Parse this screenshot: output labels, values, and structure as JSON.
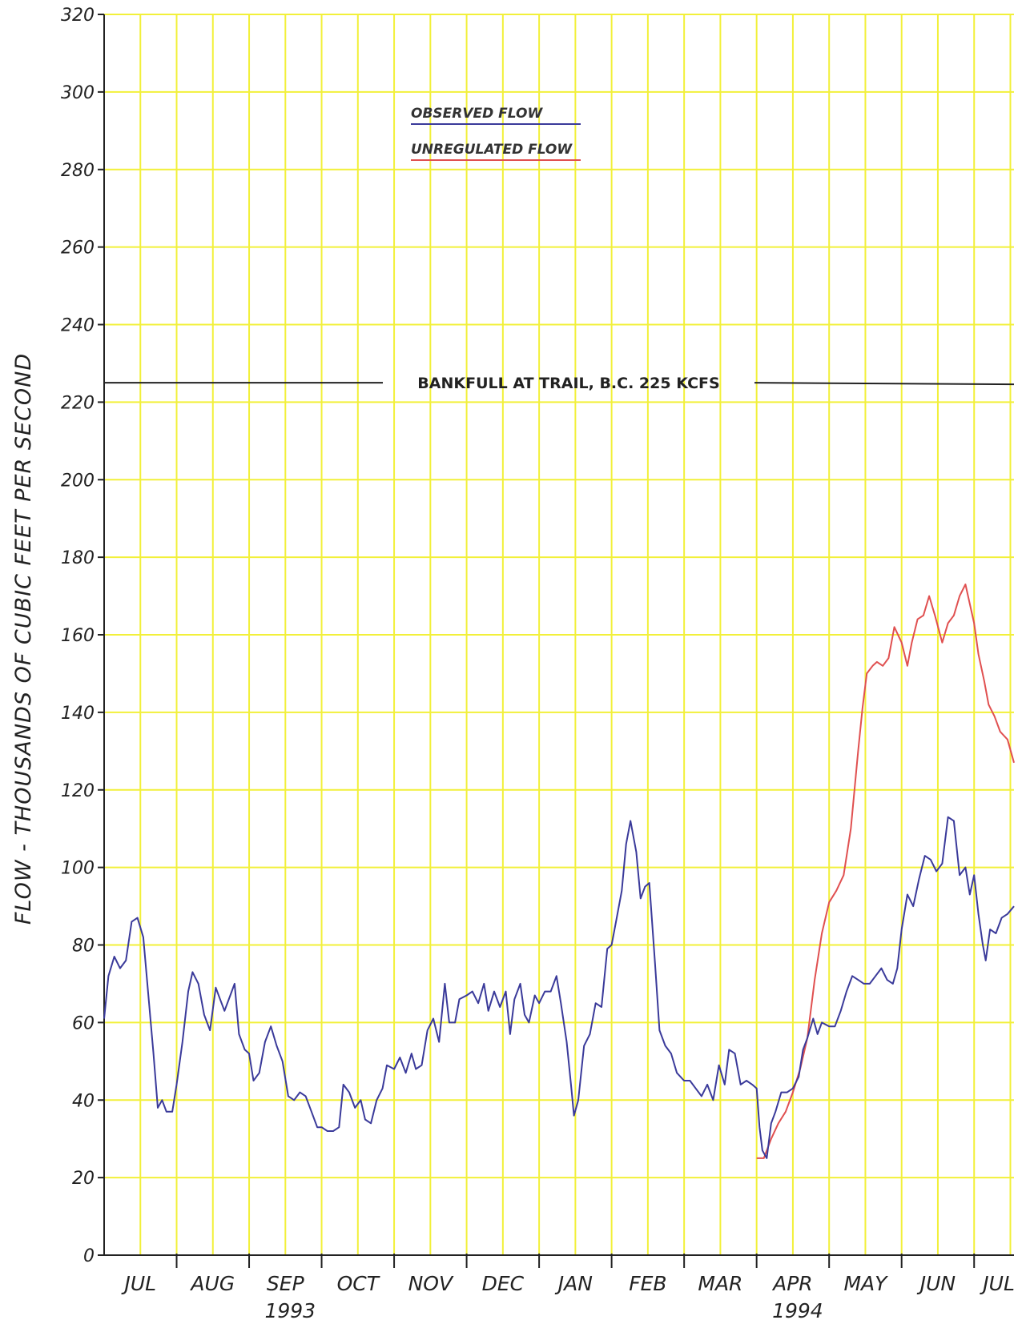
{
  "chart_data": {
    "type": "line",
    "ylabel": "FLOW - THOUSANDS OF CUBIC FEET PER SECOND",
    "ylim": [
      0,
      320
    ],
    "y_ticks": [
      "0",
      "20",
      "40",
      "60",
      "80",
      "100",
      "120",
      "140",
      "160",
      "180",
      "200",
      "220",
      "240",
      "260",
      "280",
      "300",
      "320"
    ],
    "x_tick_labels": [
      "JUL",
      "AUG",
      "SEP",
      "OCT",
      "NOV",
      "DEC",
      "JAN",
      "FEB",
      "MAR",
      "APR",
      "MAY",
      "JUN",
      "JUL"
    ],
    "years": [
      {
        "label": "1993",
        "month": "SEP"
      },
      {
        "label": "1994",
        "month": "APR"
      }
    ],
    "grid": true,
    "grid_color": "#f2f03a",
    "legend": {
      "placement": "top-center",
      "items": [
        {
          "label": "OBSERVED FLOW",
          "color": "#3a3a9a"
        },
        {
          "label": "UNREGULATED FLOW",
          "color": "#e05050"
        }
      ]
    },
    "reference_line": {
      "label": "BANKFULL AT TRAIL, B.C. 225 KCFS",
      "value": 225,
      "color": "#222222"
    },
    "series": [
      {
        "name": "OBSERVED FLOW",
        "color": "#3a3a9a",
        "points": [
          [
            0.0,
            61
          ],
          [
            0.06,
            72
          ],
          [
            0.14,
            77
          ],
          [
            0.22,
            74
          ],
          [
            0.3,
            76
          ],
          [
            0.38,
            86
          ],
          [
            0.46,
            87
          ],
          [
            0.54,
            82
          ],
          [
            0.62,
            65
          ],
          [
            0.68,
            52
          ],
          [
            0.74,
            38
          ],
          [
            0.8,
            40
          ],
          [
            0.86,
            37
          ],
          [
            0.94,
            37
          ],
          [
            1.0,
            44
          ],
          [
            1.08,
            55
          ],
          [
            1.16,
            68
          ],
          [
            1.22,
            73
          ],
          [
            1.3,
            70
          ],
          [
            1.38,
            62
          ],
          [
            1.46,
            58
          ],
          [
            1.54,
            69
          ],
          [
            1.6,
            66
          ],
          [
            1.66,
            63
          ],
          [
            1.74,
            67
          ],
          [
            1.8,
            70
          ],
          [
            1.86,
            57
          ],
          [
            1.94,
            53
          ],
          [
            2.0,
            52
          ],
          [
            2.06,
            45
          ],
          [
            2.14,
            47
          ],
          [
            2.22,
            55
          ],
          [
            2.3,
            59
          ],
          [
            2.38,
            54
          ],
          [
            2.46,
            50
          ],
          [
            2.54,
            41
          ],
          [
            2.62,
            40
          ],
          [
            2.7,
            42
          ],
          [
            2.78,
            41
          ],
          [
            2.86,
            37
          ],
          [
            2.94,
            33
          ],
          [
            3.0,
            33
          ],
          [
            3.08,
            32
          ],
          [
            3.16,
            32
          ],
          [
            3.24,
            33
          ],
          [
            3.3,
            44
          ],
          [
            3.38,
            42
          ],
          [
            3.46,
            38
          ],
          [
            3.54,
            40
          ],
          [
            3.6,
            35
          ],
          [
            3.68,
            34
          ],
          [
            3.76,
            40
          ],
          [
            3.84,
            43
          ],
          [
            3.9,
            49
          ],
          [
            4.0,
            48
          ],
          [
            4.08,
            51
          ],
          [
            4.16,
            47
          ],
          [
            4.24,
            52
          ],
          [
            4.3,
            48
          ],
          [
            4.38,
            49
          ],
          [
            4.46,
            58
          ],
          [
            4.54,
            61
          ],
          [
            4.62,
            55
          ],
          [
            4.7,
            70
          ],
          [
            4.76,
            60
          ],
          [
            4.84,
            60
          ],
          [
            4.9,
            66
          ],
          [
            5.0,
            67
          ],
          [
            5.08,
            68
          ],
          [
            5.16,
            65
          ],
          [
            5.24,
            70
          ],
          [
            5.3,
            63
          ],
          [
            5.38,
            68
          ],
          [
            5.46,
            64
          ],
          [
            5.54,
            68
          ],
          [
            5.6,
            57
          ],
          [
            5.66,
            66
          ],
          [
            5.74,
            70
          ],
          [
            5.8,
            62
          ],
          [
            5.86,
            60
          ],
          [
            5.94,
            67
          ],
          [
            6.0,
            65
          ],
          [
            6.08,
            68
          ],
          [
            6.16,
            68
          ],
          [
            6.24,
            72
          ],
          [
            6.3,
            65
          ],
          [
            6.38,
            55
          ],
          [
            6.44,
            44
          ],
          [
            6.48,
            36
          ],
          [
            6.54,
            40
          ],
          [
            6.62,
            54
          ],
          [
            6.7,
            57
          ],
          [
            6.78,
            65
          ],
          [
            6.86,
            64
          ],
          [
            6.94,
            79
          ],
          [
            7.0,
            80
          ],
          [
            7.06,
            86
          ],
          [
            7.14,
            94
          ],
          [
            7.2,
            106
          ],
          [
            7.26,
            112
          ],
          [
            7.34,
            104
          ],
          [
            7.4,
            92
          ],
          [
            7.46,
            95
          ],
          [
            7.52,
            96
          ],
          [
            7.6,
            75
          ],
          [
            7.66,
            58
          ],
          [
            7.74,
            54
          ],
          [
            7.82,
            52
          ],
          [
            7.9,
            47
          ],
          [
            8.0,
            45
          ],
          [
            8.08,
            45
          ],
          [
            8.16,
            43
          ],
          [
            8.24,
            41
          ],
          [
            8.32,
            44
          ],
          [
            8.4,
            40
          ],
          [
            8.48,
            49
          ],
          [
            8.56,
            44
          ],
          [
            8.62,
            53
          ],
          [
            8.7,
            52
          ],
          [
            8.78,
            44
          ],
          [
            8.86,
            45
          ],
          [
            8.94,
            44
          ],
          [
            9.0,
            43
          ],
          [
            9.04,
            33
          ],
          [
            9.08,
            27
          ],
          [
            9.14,
            25
          ],
          [
            9.2,
            34
          ],
          [
            9.26,
            37
          ],
          [
            9.34,
            42
          ],
          [
            9.42,
            42
          ],
          [
            9.5,
            43
          ],
          [
            9.58,
            46
          ],
          [
            9.64,
            53
          ],
          [
            9.7,
            56
          ],
          [
            9.78,
            61
          ],
          [
            9.84,
            57
          ],
          [
            9.9,
            60
          ],
          [
            10.0,
            59
          ],
          [
            10.08,
            59
          ],
          [
            10.16,
            63
          ],
          [
            10.24,
            68
          ],
          [
            10.32,
            72
          ],
          [
            10.4,
            71
          ],
          [
            10.48,
            70
          ],
          [
            10.56,
            70
          ],
          [
            10.64,
            72
          ],
          [
            10.72,
            74
          ],
          [
            10.8,
            71
          ],
          [
            10.88,
            70
          ],
          [
            10.94,
            74
          ],
          [
            11.0,
            84
          ],
          [
            11.08,
            93
          ],
          [
            11.16,
            90
          ],
          [
            11.24,
            97
          ],
          [
            11.32,
            103
          ],
          [
            11.4,
            102
          ],
          [
            11.48,
            99
          ],
          [
            11.56,
            101
          ],
          [
            11.64,
            113
          ],
          [
            11.72,
            112
          ],
          [
            11.8,
            98
          ],
          [
            11.88,
            100
          ],
          [
            11.94,
            93
          ],
          [
            12.0,
            98
          ],
          [
            12.06,
            88
          ],
          [
            12.12,
            80
          ],
          [
            12.16,
            76
          ],
          [
            12.22,
            84
          ],
          [
            12.3,
            83
          ],
          [
            12.38,
            87
          ],
          [
            12.46,
            88
          ],
          [
            12.55,
            90
          ]
        ]
      },
      {
        "name": "UNREGULATED FLOW",
        "color": "#e05050",
        "points": [
          [
            9.0,
            25
          ],
          [
            9.1,
            25
          ],
          [
            9.2,
            30
          ],
          [
            9.3,
            34
          ],
          [
            9.4,
            37
          ],
          [
            9.5,
            42
          ],
          [
            9.6,
            48
          ],
          [
            9.7,
            56
          ],
          [
            9.8,
            71
          ],
          [
            9.9,
            83
          ],
          [
            10.0,
            91
          ],
          [
            10.1,
            94
          ],
          [
            10.2,
            98
          ],
          [
            10.3,
            110
          ],
          [
            10.4,
            130
          ],
          [
            10.46,
            141
          ],
          [
            10.52,
            150
          ],
          [
            10.6,
            152
          ],
          [
            10.66,
            153
          ],
          [
            10.74,
            152
          ],
          [
            10.82,
            154
          ],
          [
            10.9,
            162
          ],
          [
            11.0,
            158
          ],
          [
            11.08,
            152
          ],
          [
            11.14,
            158
          ],
          [
            11.22,
            164
          ],
          [
            11.3,
            165
          ],
          [
            11.38,
            170
          ],
          [
            11.46,
            165
          ],
          [
            11.56,
            158
          ],
          [
            11.64,
            163
          ],
          [
            11.72,
            165
          ],
          [
            11.8,
            170
          ],
          [
            11.88,
            173
          ],
          [
            11.94,
            168
          ],
          [
            12.0,
            163
          ],
          [
            12.06,
            155
          ],
          [
            12.14,
            148
          ],
          [
            12.2,
            142
          ],
          [
            12.28,
            139
          ],
          [
            12.36,
            135
          ],
          [
            12.46,
            133
          ],
          [
            12.55,
            127
          ]
        ]
      }
    ]
  }
}
